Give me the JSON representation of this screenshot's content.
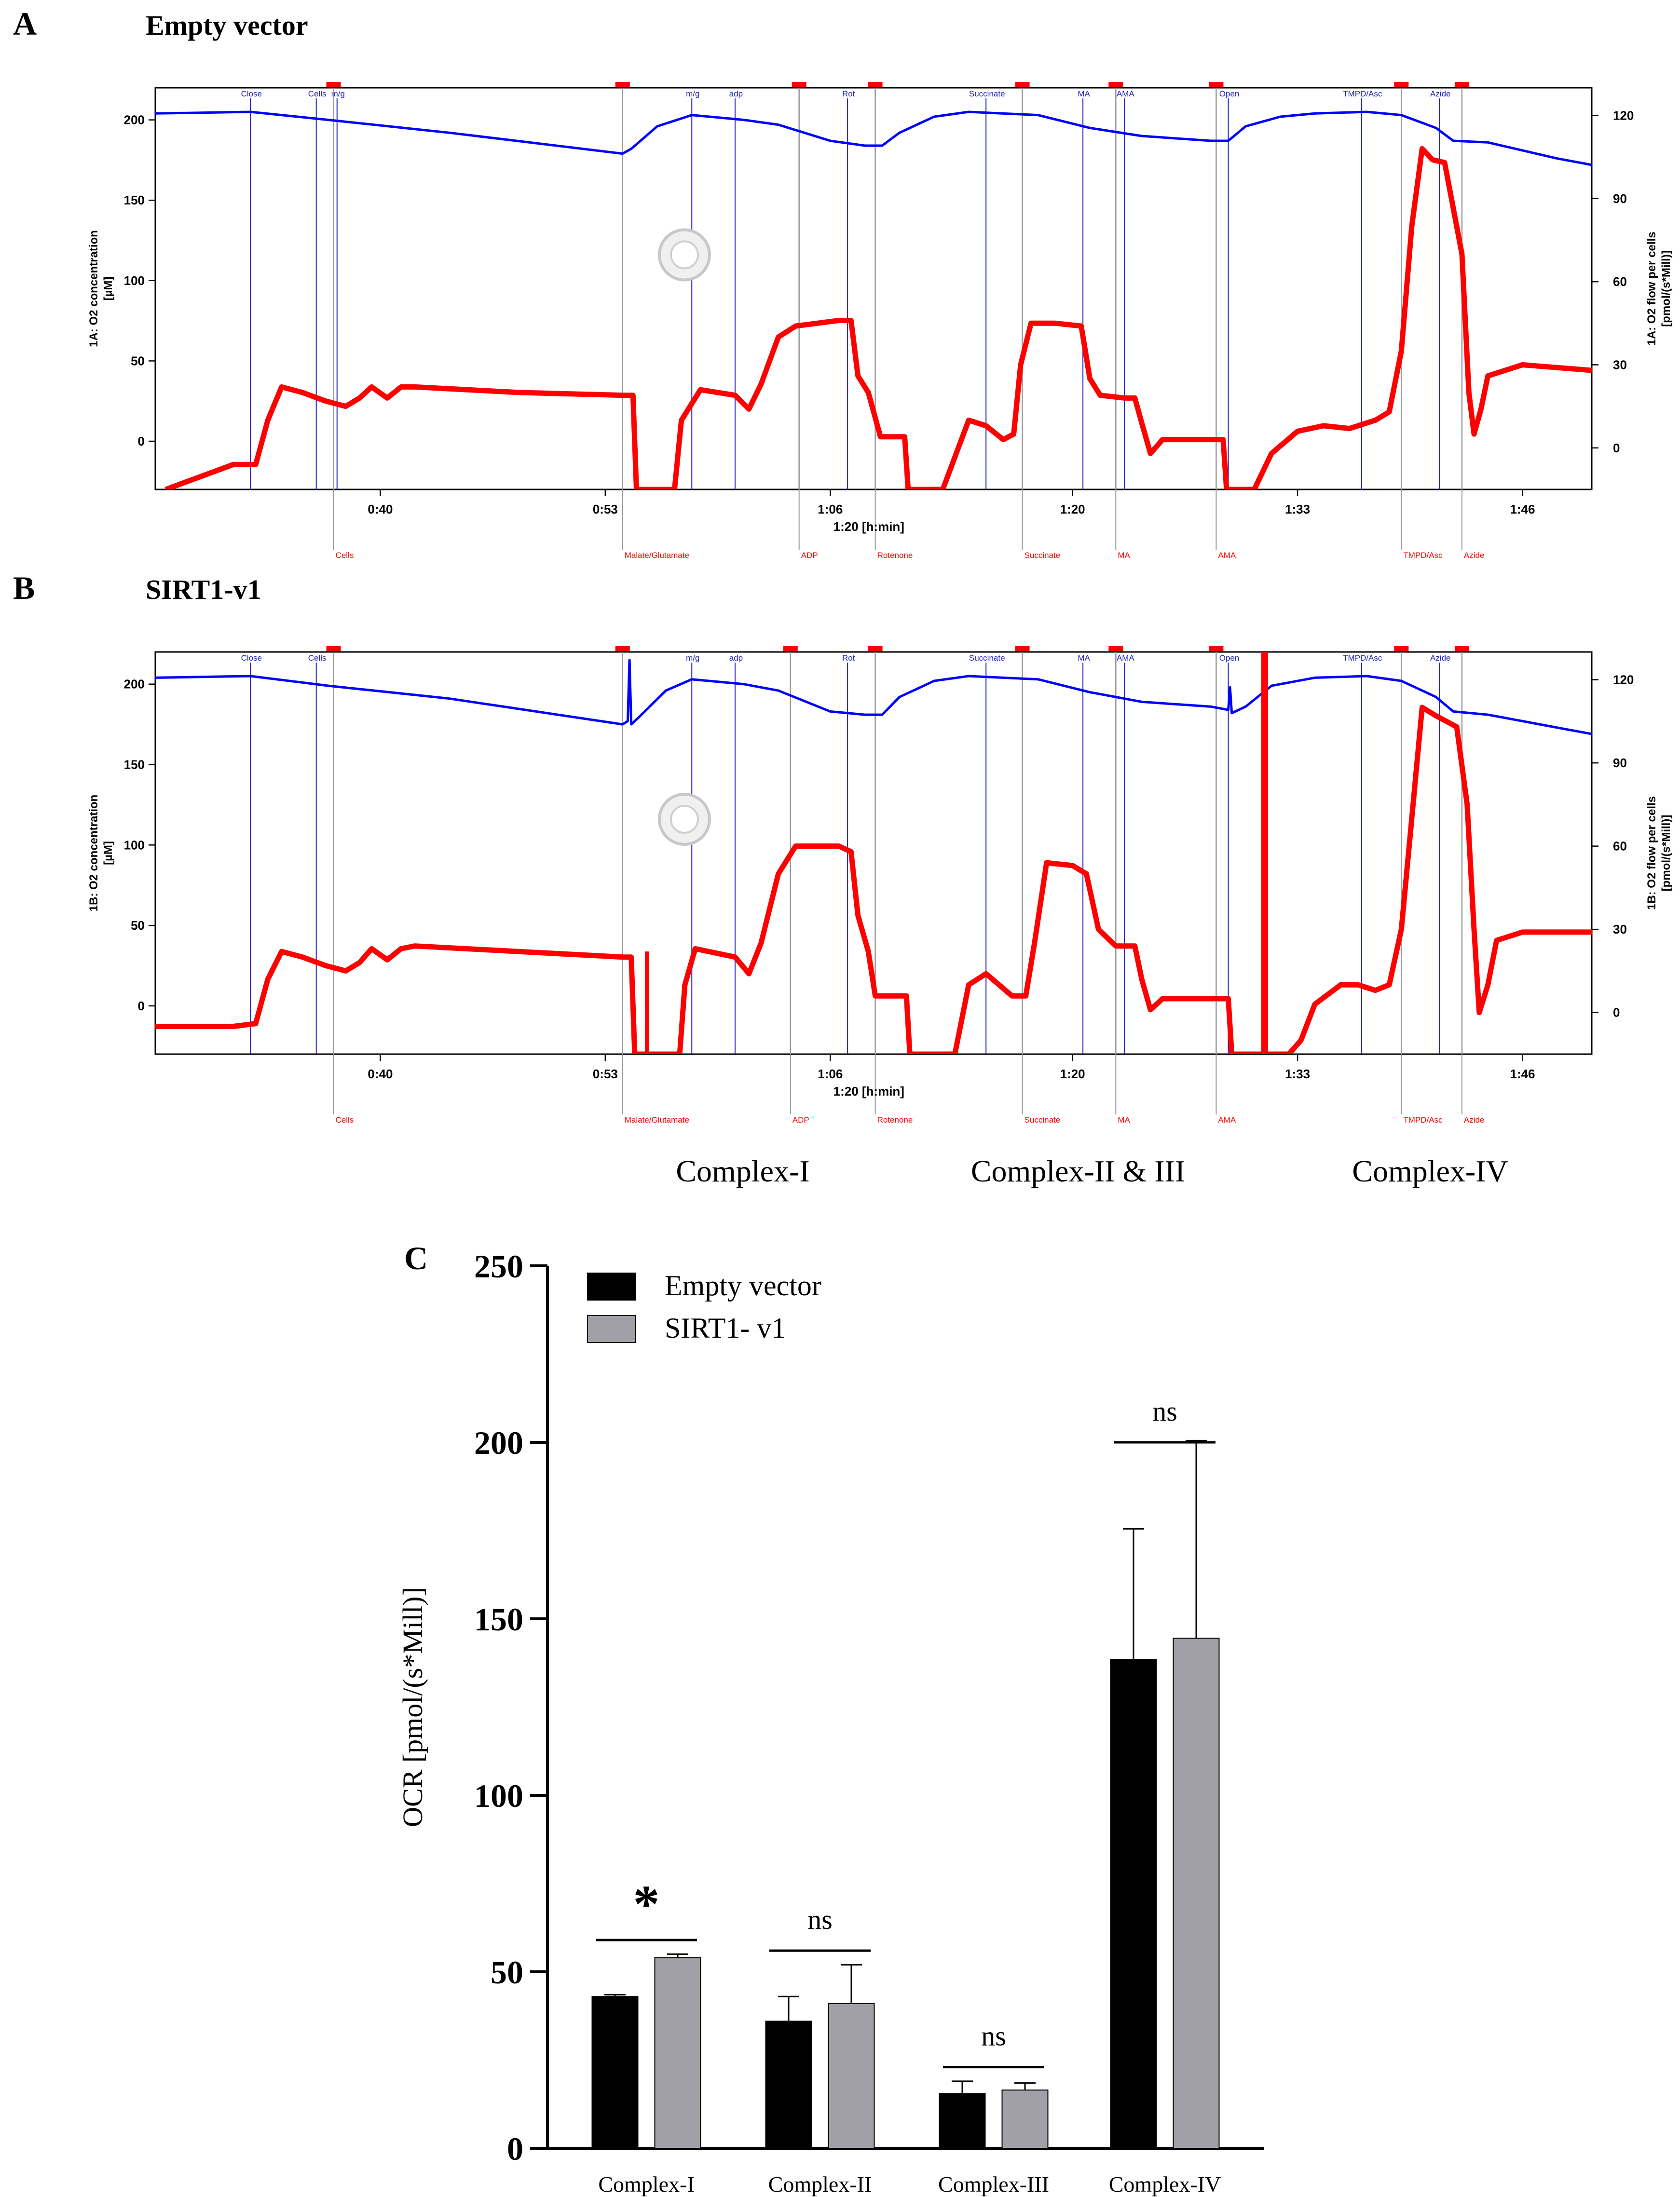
{
  "colors": {
    "o2_concentration": "#0000ff",
    "o2_flow": "#ff0000",
    "event_line_blue": "#2020c0",
    "event_line_gray": "#999999",
    "empty_vector_bar": "#000000",
    "sirt1_bar": "#a0a0a6"
  },
  "panel_a": {
    "letter": "A",
    "title": "Empty vector",
    "left_axis_label_1": "1A: O2 concentration",
    "left_axis_label_2": "[µM]",
    "right_axis_label_1": "1A: O2 flow per cells",
    "right_axis_label_2": "[pmol/(s*Mill)]",
    "time_label": "1:20 [h:min]",
    "left_ticks": [
      200,
      150,
      100,
      50,
      0
    ],
    "right_ticks": [
      120,
      90,
      60,
      30,
      0
    ],
    "time_ticks": [
      "0:40",
      "0:53",
      "1:06",
      "1:20",
      "1:33",
      "1:46"
    ],
    "top_events": [
      {
        "label": "Close",
        "t": 32.5
      },
      {
        "label": "Cells",
        "t": 36.3
      },
      {
        "label": "m/g",
        "t": 37.5
      },
      {
        "label": "m/g",
        "t": 58.0
      },
      {
        "label": "adp",
        "t": 60.5
      },
      {
        "label": "Rot",
        "t": 67.0
      },
      {
        "label": "Succinate",
        "t": 75.0
      },
      {
        "label": "MA",
        "t": 80.6
      },
      {
        "label": "AMA",
        "t": 83.0
      },
      {
        "label": "Open",
        "t": 89.0
      },
      {
        "label": "TMPD/Asc",
        "t": 96.7
      },
      {
        "label": "Azide",
        "t": 101.2
      }
    ],
    "bottom_events": [
      {
        "label": "Cells",
        "t": 37.3
      },
      {
        "label": "Malate/Glutamate",
        "t": 54.0
      },
      {
        "label": "ADP",
        "t": 64.2
      },
      {
        "label": "Rotenone",
        "t": 68.6
      },
      {
        "label": "Succinate",
        "t": 77.1
      },
      {
        "label": "MA",
        "t": 82.5
      },
      {
        "label": "AMA",
        "t": 88.3
      },
      {
        "label": "TMPD/Asc",
        "t": 99.0
      },
      {
        "label": "Azide",
        "t": 102.5
      }
    ]
  },
  "panel_b": {
    "letter": "B",
    "title": "SIRT1-v1",
    "left_axis_label_1": "1B: O2 concentration",
    "left_axis_label_2": "[µM]",
    "right_axis_label_1": "1B: O2 flow per cells",
    "right_axis_label_2": "[pmol/(s*Mill)]",
    "time_label": "1:20 [h:min]",
    "left_ticks": [
      200,
      150,
      100,
      50,
      0
    ],
    "right_ticks": [
      120,
      90,
      60,
      30,
      0
    ],
    "time_ticks": [
      "0:40",
      "0:53",
      "1:06",
      "1:20",
      "1:33",
      "1:46"
    ],
    "top_events": [
      {
        "label": "Close",
        "t": 32.5
      },
      {
        "label": "Cells",
        "t": 36.3
      },
      {
        "label": "m/g",
        "t": 58.0
      },
      {
        "label": "adp",
        "t": 60.5
      },
      {
        "label": "Rot",
        "t": 67.0
      },
      {
        "label": "Succinate",
        "t": 75.0
      },
      {
        "label": "MA",
        "t": 80.6
      },
      {
        "label": "AMA",
        "t": 83.0
      },
      {
        "label": "Open",
        "t": 89.0
      },
      {
        "label": "TMPD/Asc",
        "t": 96.7
      },
      {
        "label": "Azide",
        "t": 101.2
      }
    ],
    "bottom_events": [
      {
        "label": "Cells",
        "t": 37.3
      },
      {
        "label": "Malate/Glutamate",
        "t": 54.0
      },
      {
        "label": "ADP",
        "t": 63.7
      },
      {
        "label": "Rotenone",
        "t": 68.6
      },
      {
        "label": "Succinate",
        "t": 77.1
      },
      {
        "label": "MA",
        "t": 82.5
      },
      {
        "label": "AMA",
        "t": 88.3
      },
      {
        "label": "TMPD/Asc",
        "t": 99.0
      },
      {
        "label": "Azide",
        "t": 102.5
      }
    ]
  },
  "complex_labels": [
    "Complex-I",
    "Complex-II & III",
    "Complex-IV"
  ],
  "chart_data": [
    {
      "type": "line",
      "panel": "A",
      "title": "Empty vector",
      "xlabel": "1:20 [h:min]",
      "x_unit": "minutes",
      "xlim": [
        27,
        110
      ],
      "ylim_left": [
        -30,
        220
      ],
      "ylim_right": [
        -15,
        130
      ],
      "series": [
        {
          "name": "1A: O2 concentration [µM]",
          "axis": "left",
          "points": [
            [
              27,
              204
            ],
            [
              32.5,
              205
            ],
            [
              37,
              200
            ],
            [
              44,
              192
            ],
            [
              54,
              179
            ],
            [
              54.5,
              182
            ],
            [
              56,
              196
            ],
            [
              58,
              203
            ],
            [
              61,
              200
            ],
            [
              63,
              197
            ],
            [
              66,
              187
            ],
            [
              68,
              184
            ],
            [
              69,
              184
            ],
            [
              70,
              192
            ],
            [
              72,
              202
            ],
            [
              74,
              205
            ],
            [
              78,
              203
            ],
            [
              81,
              195
            ],
            [
              84,
              190
            ],
            [
              88,
              187
            ],
            [
              89,
              187
            ],
            [
              90,
              196
            ],
            [
              92,
              202
            ],
            [
              94,
              204
            ],
            [
              97,
              205
            ],
            [
              99,
              203
            ],
            [
              101,
              195
            ],
            [
              102,
              187
            ],
            [
              104,
              186
            ],
            [
              108,
              176
            ],
            [
              110,
              172
            ]
          ]
        },
        {
          "name": "1A: O2 flow per cells [pmol/(s*Mill)]",
          "axis": "right",
          "points": [
            [
              27.6,
              -15
            ],
            [
              31.5,
              -6
            ],
            [
              32.8,
              -6
            ],
            [
              33.5,
              10
            ],
            [
              34.3,
              22
            ],
            [
              35.5,
              20
            ],
            [
              36.8,
              17
            ],
            [
              38,
              15
            ],
            [
              38.8,
              18
            ],
            [
              39.5,
              22
            ],
            [
              40.4,
              18
            ],
            [
              41.2,
              22
            ],
            [
              42,
              22
            ],
            [
              48,
              20
            ],
            [
              54,
              19
            ],
            [
              54.6,
              19
            ],
            [
              54.8,
              -15
            ],
            [
              57.0,
              -15
            ],
            [
              57.4,
              10
            ],
            [
              58.5,
              21
            ],
            [
              60.5,
              19
            ],
            [
              61.3,
              14
            ],
            [
              62,
              23
            ],
            [
              63,
              40
            ],
            [
              64,
              44
            ],
            [
              66.5,
              46
            ],
            [
              67.2,
              46
            ],
            [
              67.6,
              26
            ],
            [
              68.2,
              20
            ],
            [
              68.9,
              4
            ],
            [
              70.3,
              4
            ],
            [
              70.5,
              -15
            ],
            [
              72.5,
              -15
            ],
            [
              74,
              10
            ],
            [
              75,
              8
            ],
            [
              76,
              3
            ],
            [
              76.6,
              5
            ],
            [
              77,
              30
            ],
            [
              77.6,
              45
            ],
            [
              79,
              45
            ],
            [
              80.5,
              44
            ],
            [
              81,
              25
            ],
            [
              81.6,
              19
            ],
            [
              83,
              18
            ],
            [
              83.6,
              18
            ],
            [
              84,
              9
            ],
            [
              84.5,
              -2
            ],
            [
              85.2,
              3
            ],
            [
              88,
              3
            ],
            [
              88.7,
              3
            ],
            [
              88.9,
              -15
            ],
            [
              90.5,
              -15
            ],
            [
              91.5,
              -2
            ],
            [
              93,
              6
            ],
            [
              94.5,
              8
            ],
            [
              96,
              7
            ],
            [
              97.5,
              10
            ],
            [
              98.3,
              13
            ],
            [
              99,
              35
            ],
            [
              99.6,
              80
            ],
            [
              100.2,
              108
            ],
            [
              100.8,
              104
            ],
            [
              101.5,
              103
            ],
            [
              102.5,
              70
            ],
            [
              102.9,
              20
            ],
            [
              103.2,
              5
            ],
            [
              103.6,
              14
            ],
            [
              104,
              26
            ],
            [
              106,
              30
            ],
            [
              110,
              28
            ]
          ]
        }
      ]
    },
    {
      "type": "line",
      "panel": "B",
      "title": "SIRT1-v1",
      "xlabel": "1:20 [h:min]",
      "x_unit": "minutes",
      "xlim": [
        27,
        110
      ],
      "ylim_left": [
        -30,
        220
      ],
      "ylim_right": [
        -15,
        130
      ],
      "series": [
        {
          "name": "1B: O2 concentration [µM]",
          "axis": "left",
          "points": [
            [
              27,
              204
            ],
            [
              32.5,
              205
            ],
            [
              37,
              199
            ],
            [
              44,
              191
            ],
            [
              54,
              175
            ],
            [
              54.3,
              177
            ],
            [
              54.4,
              215
            ],
            [
              54.5,
              175
            ],
            [
              55,
              180
            ],
            [
              56.5,
              196
            ],
            [
              58,
              203
            ],
            [
              61,
              200
            ],
            [
              63,
              196
            ],
            [
              66,
              183
            ],
            [
              68,
              181
            ],
            [
              69,
              181
            ],
            [
              70,
              192
            ],
            [
              72,
              202
            ],
            [
              74,
              205
            ],
            [
              78,
              203
            ],
            [
              81,
              195
            ],
            [
              84,
              189
            ],
            [
              88,
              186
            ],
            [
              89,
              184
            ],
            [
              89.1,
              198
            ],
            [
              89.2,
              182
            ],
            [
              90,
              186
            ],
            [
              91.5,
              199
            ],
            [
              94,
              204
            ],
            [
              97,
              205
            ],
            [
              99,
              202
            ],
            [
              101,
              192
            ],
            [
              102,
              183
            ],
            [
              104,
              181
            ],
            [
              108,
              173
            ],
            [
              110,
              169
            ]
          ]
        },
        {
          "name": "1B: O2 flow per cells [pmol/(s*Mill)]",
          "axis": "right",
          "points": [
            [
              27,
              -5
            ],
            [
              31.5,
              -5
            ],
            [
              32.8,
              -4
            ],
            [
              33.5,
              12
            ],
            [
              34.3,
              22
            ],
            [
              35.5,
              20
            ],
            [
              36.8,
              17
            ],
            [
              38,
              15
            ],
            [
              38.8,
              18
            ],
            [
              39.5,
              23
            ],
            [
              40.4,
              19
            ],
            [
              41.2,
              23
            ],
            [
              42,
              24
            ],
            [
              48,
              22
            ],
            [
              54,
              20
            ],
            [
              54.5,
              20
            ],
            [
              54.7,
              -15
            ],
            [
              57.3,
              -15
            ],
            [
              57.6,
              10
            ],
            [
              58.2,
              23
            ],
            [
              60.5,
              20
            ],
            [
              61.3,
              14
            ],
            [
              62,
              25
            ],
            [
              63,
              50
            ],
            [
              64,
              60
            ],
            [
              66.5,
              60
            ],
            [
              67.2,
              58
            ],
            [
              67.6,
              35
            ],
            [
              68.2,
              22
            ],
            [
              68.6,
              6
            ],
            [
              70.4,
              6
            ],
            [
              70.6,
              -15
            ],
            [
              73.2,
              -15
            ],
            [
              74,
              10
            ],
            [
              75,
              14
            ],
            [
              76.5,
              6
            ],
            [
              77.3,
              6
            ],
            [
              77.8,
              25
            ],
            [
              78.5,
              54
            ],
            [
              80,
              53
            ],
            [
              80.8,
              50
            ],
            [
              81.5,
              30
            ],
            [
              82.5,
              24
            ],
            [
              83.6,
              24
            ],
            [
              84,
              12
            ],
            [
              84.5,
              1
            ],
            [
              85.2,
              5
            ],
            [
              89,
              5
            ],
            [
              89.2,
              -15
            ],
            [
              92.5,
              -15
            ],
            [
              93.2,
              -10
            ],
            [
              94,
              3
            ],
            [
              95.5,
              10
            ],
            [
              96.5,
              10
            ],
            [
              97.5,
              8
            ],
            [
              98.3,
              10
            ],
            [
              99,
              30
            ],
            [
              99.6,
              70
            ],
            [
              100.2,
              110
            ],
            [
              101,
              107
            ],
            [
              102.2,
              103
            ],
            [
              102.8,
              75
            ],
            [
              103.2,
              30
            ],
            [
              103.5,
              0
            ],
            [
              104,
              10
            ],
            [
              104.5,
              26
            ],
            [
              106,
              29
            ],
            [
              110,
              29
            ]
          ]
        }
      ],
      "spikes": [
        {
          "axis": "right",
          "t": 55.4,
          "y_low": -15,
          "y_high": 22
        },
        {
          "axis": "right",
          "t": 91.1,
          "y_low": -15,
          "y_high": 130
        }
      ]
    },
    {
      "type": "bar",
      "panel": "C",
      "panel_letter": "C",
      "categories": [
        "Complex-I",
        "Complex-II",
        "Complex-III",
        "Complex-IV"
      ],
      "series": [
        {
          "name": "Empty vector",
          "values": [
            43,
            36,
            15.5,
            138.5
          ],
          "errors": [
            0.5,
            7,
            3.5,
            37
          ]
        },
        {
          "name": "SIRT1- v1",
          "values": [
            54,
            41,
            16.5,
            144.5
          ],
          "errors": [
            1,
            11,
            2,
            56
          ]
        }
      ],
      "significance": [
        "*",
        "ns",
        "ns",
        "ns"
      ],
      "ylabel": "OCR [pmol/(s*Mill)]",
      "ylim": [
        0,
        250
      ],
      "yticks": [
        0,
        50,
        100,
        150,
        200,
        250
      ],
      "legend_position": "top-left"
    }
  ]
}
